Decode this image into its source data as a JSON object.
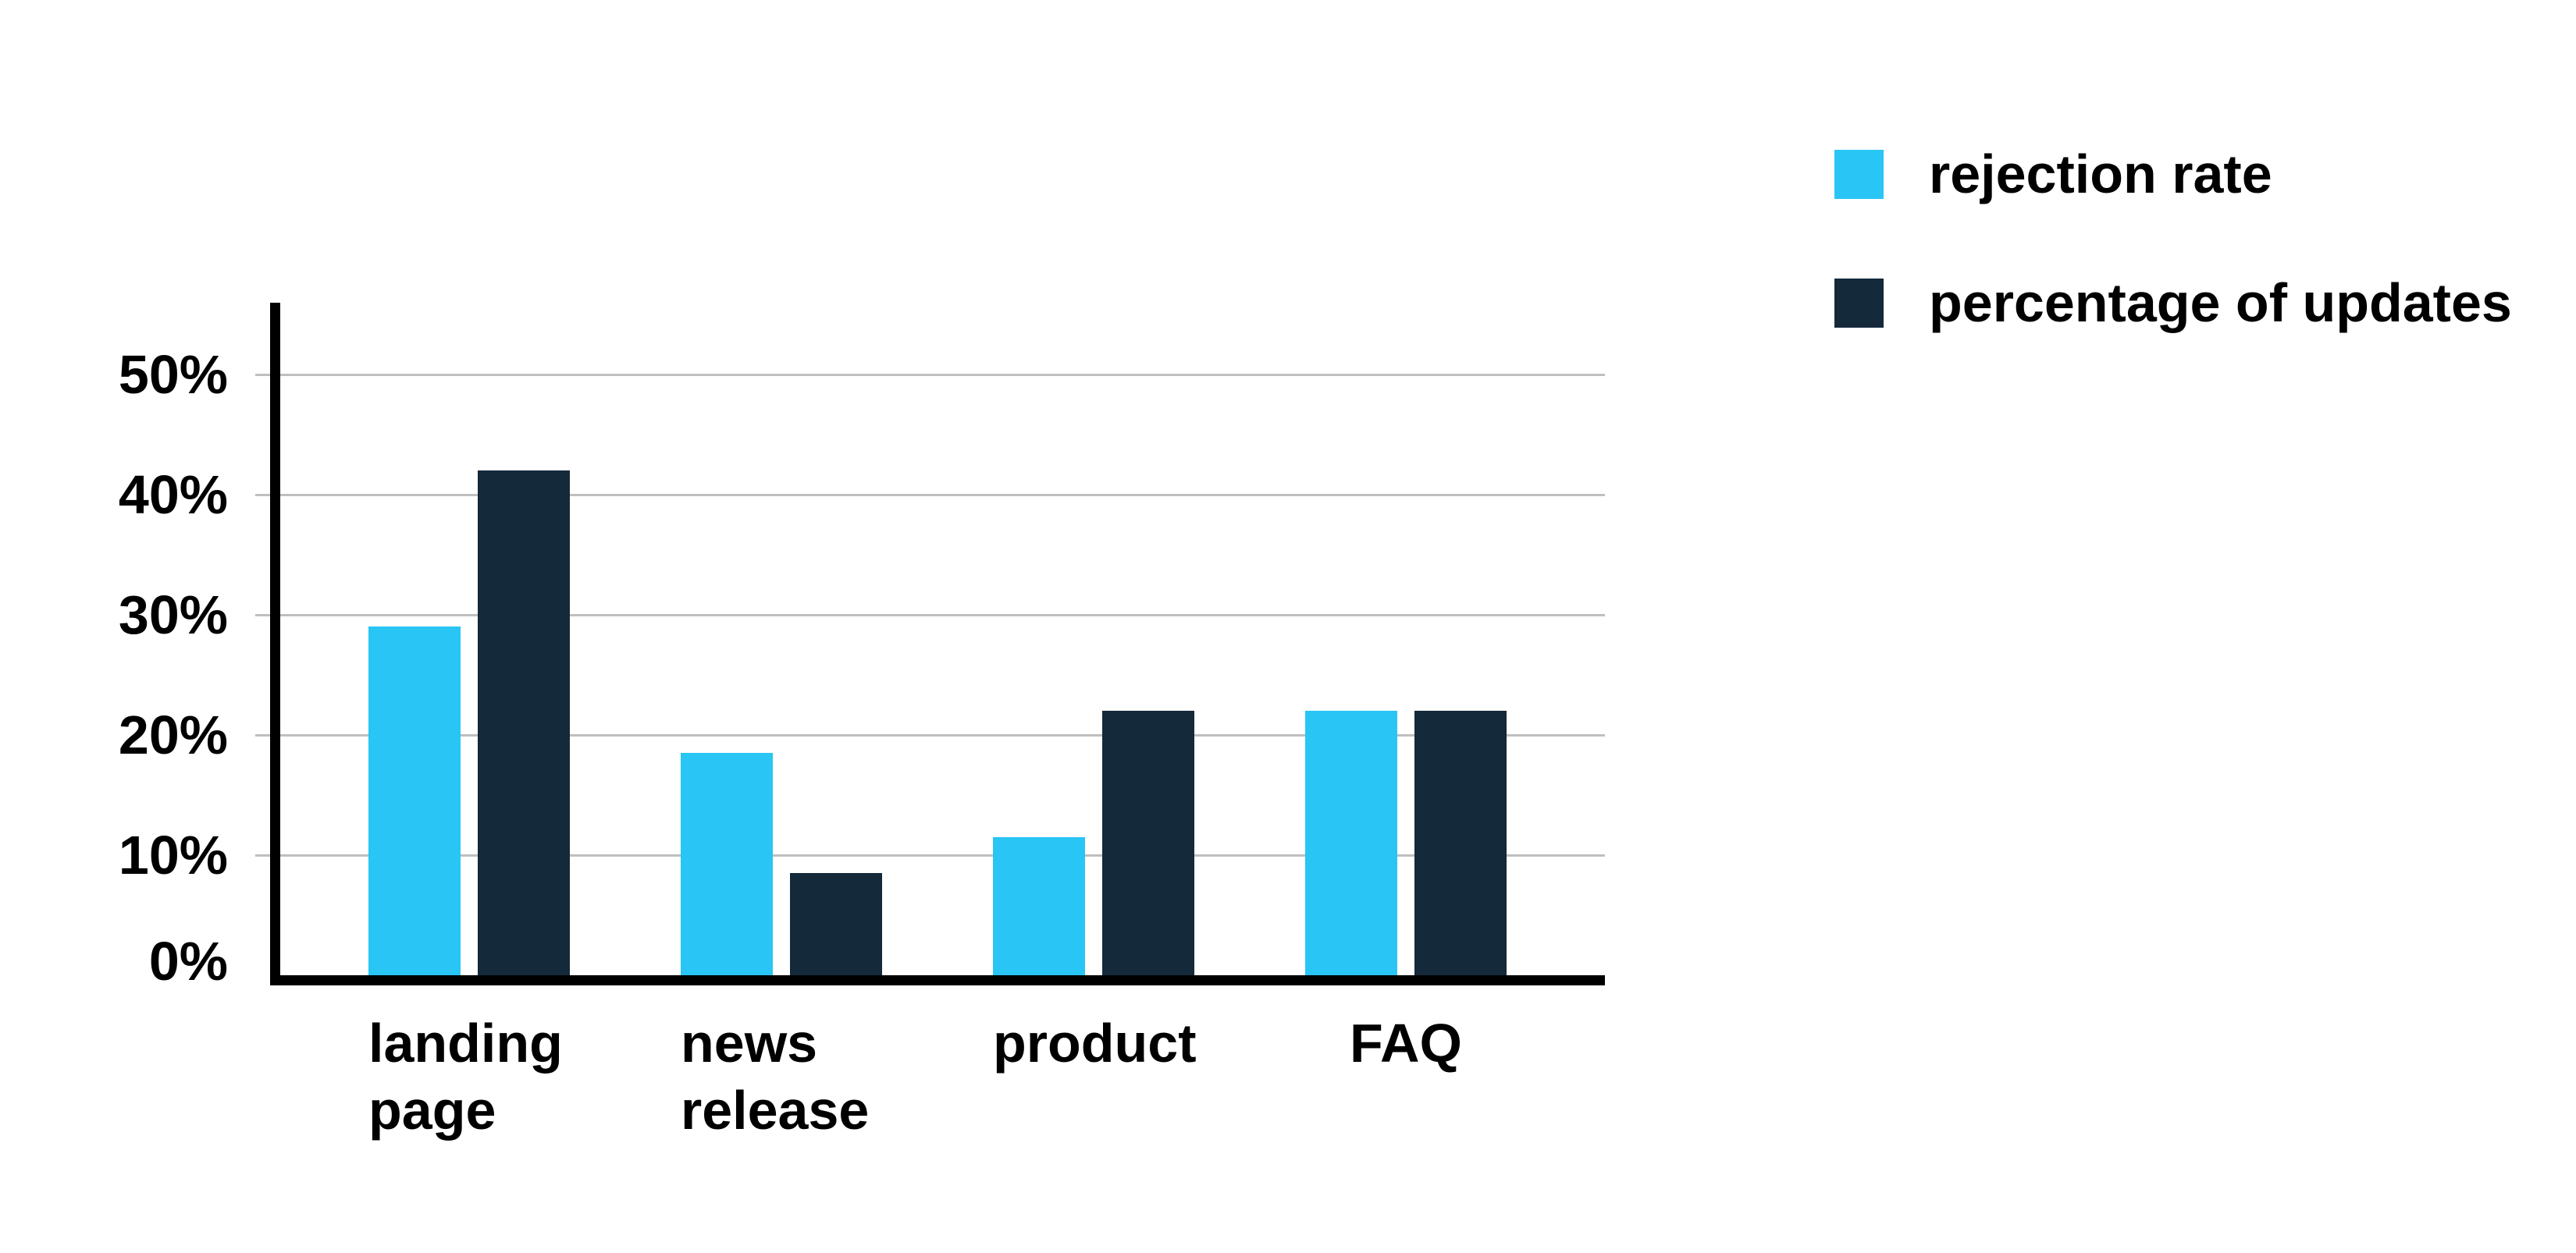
{
  "chart_data": {
    "type": "bar",
    "categories": [
      "landing\npage",
      "news\nrelease",
      "product",
      "FAQ"
    ],
    "series": [
      {
        "name": "rejection rate",
        "color": "#29c5f5",
        "values": [
          29,
          18.5,
          11.5,
          22
        ]
      },
      {
        "name": "percentage of updates",
        "color": "#14293a",
        "values": [
          42,
          8.5,
          22,
          22
        ]
      }
    ],
    "title": "",
    "xlabel": "",
    "ylabel": "",
    "ylim": [
      0,
      56
    ],
    "yticks": [
      "0%",
      "10%",
      "20%",
      "30%",
      "40%",
      "50%"
    ],
    "grid": true,
    "gridline_color": "#bfbfbf",
    "axis_color": "#000000",
    "text_color": "#000000",
    "background_color": "#ffffff",
    "legend_position": "top-right",
    "x_label_align": [
      "left",
      "left",
      "left",
      "center"
    ]
  }
}
